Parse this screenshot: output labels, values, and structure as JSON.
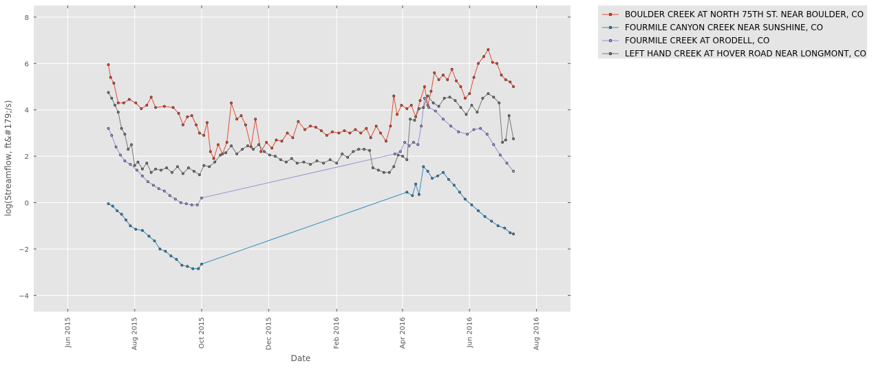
{
  "chart_data": {
    "type": "line",
    "xlabel": "Date",
    "ylabel": "log(Streamflow, ft&#179;/s)",
    "xlim": [
      "2015-05-01",
      "2016-09-01"
    ],
    "ylim": [
      -4.7,
      8.5
    ],
    "x_ticks": [
      "2015-06-01",
      "2015-08-01",
      "2015-10-01",
      "2015-12-01",
      "2016-02-01",
      "2016-04-01",
      "2016-06-01",
      "2016-08-01"
    ],
    "x_tick_labels": [
      "Jun 2015",
      "Aug 2015",
      "Oct 2015",
      "Dec 2015",
      "Feb 2016",
      "Apr 2016",
      "Jun 2016",
      "Aug 2016"
    ],
    "y_ticks": [
      -4,
      -2,
      0,
      2,
      4,
      6,
      8
    ],
    "y_tick_labels": [
      "−4",
      "−2",
      "0",
      "2",
      "4",
      "6",
      "8"
    ],
    "grid": true,
    "background": "#e5e5e5",
    "legend_position": "outside-upper-right",
    "series": [
      {
        "name": "BOULDER CREEK AT NORTH 75TH ST. NEAR BOULDER, CO",
        "color": "#e24a33",
        "points": [
          [
            "2015-07-08",
            5.95
          ],
          [
            "2015-07-10",
            5.4
          ],
          [
            "2015-07-13",
            5.15
          ],
          [
            "2015-07-17",
            4.3
          ],
          [
            "2015-07-22",
            4.3
          ],
          [
            "2015-07-27",
            4.45
          ],
          [
            "2015-08-02",
            4.3
          ],
          [
            "2015-08-07",
            4.05
          ],
          [
            "2015-08-12",
            4.2
          ],
          [
            "2015-08-16",
            4.55
          ],
          [
            "2015-08-20",
            4.1
          ],
          [
            "2015-08-28",
            4.15
          ],
          [
            "2015-09-05",
            4.1
          ],
          [
            "2015-09-10",
            3.85
          ],
          [
            "2015-09-14",
            3.35
          ],
          [
            "2015-09-18",
            3.7
          ],
          [
            "2015-09-22",
            3.75
          ],
          [
            "2015-09-26",
            3.35
          ],
          [
            "2015-09-29",
            3.0
          ],
          [
            "2015-10-03",
            2.9
          ],
          [
            "2015-10-06",
            3.45
          ],
          [
            "2015-10-09",
            2.2
          ],
          [
            "2015-10-12",
            1.9
          ],
          [
            "2015-10-16",
            2.5
          ],
          [
            "2015-10-20",
            2.1
          ],
          [
            "2015-10-24",
            2.6
          ],
          [
            "2015-10-28",
            4.3
          ],
          [
            "2015-11-02",
            3.6
          ],
          [
            "2015-11-06",
            3.75
          ],
          [
            "2015-11-10",
            3.35
          ],
          [
            "2015-11-15",
            2.4
          ],
          [
            "2015-11-19",
            3.6
          ],
          [
            "2015-11-24",
            2.2
          ],
          [
            "2015-11-29",
            2.6
          ],
          [
            "2015-12-04",
            2.35
          ],
          [
            "2015-12-08",
            2.7
          ],
          [
            "2015-12-13",
            2.65
          ],
          [
            "2015-12-18",
            3.0
          ],
          [
            "2015-12-23",
            2.8
          ],
          [
            "2015-12-28",
            3.5
          ],
          [
            "2016-01-03",
            3.15
          ],
          [
            "2016-01-08",
            3.3
          ],
          [
            "2016-01-13",
            3.25
          ],
          [
            "2016-01-18",
            3.1
          ],
          [
            "2016-01-23",
            2.9
          ],
          [
            "2016-01-28",
            3.05
          ],
          [
            "2016-02-03",
            3.0
          ],
          [
            "2016-02-08",
            3.1
          ],
          [
            "2016-02-13",
            3.0
          ],
          [
            "2016-02-18",
            3.15
          ],
          [
            "2016-02-23",
            3.0
          ],
          [
            "2016-02-28",
            3.2
          ],
          [
            "2016-03-03",
            2.8
          ],
          [
            "2016-03-08",
            3.3
          ],
          [
            "2016-03-12",
            3.0
          ],
          [
            "2016-03-17",
            2.65
          ],
          [
            "2016-03-21",
            3.3
          ],
          [
            "2016-03-24",
            4.6
          ],
          [
            "2016-03-27",
            3.8
          ],
          [
            "2016-03-31",
            4.2
          ],
          [
            "2016-04-05",
            4.05
          ],
          [
            "2016-04-09",
            4.2
          ],
          [
            "2016-04-13",
            3.7
          ],
          [
            "2016-04-17",
            4.4
          ],
          [
            "2016-04-21",
            5.0
          ],
          [
            "2016-04-24",
            4.2
          ],
          [
            "2016-04-27",
            4.8
          ],
          [
            "2016-04-30",
            5.6
          ],
          [
            "2016-05-04",
            5.3
          ],
          [
            "2016-05-08",
            5.5
          ],
          [
            "2016-05-12",
            5.3
          ],
          [
            "2016-05-16",
            5.75
          ],
          [
            "2016-05-20",
            5.25
          ],
          [
            "2016-05-24",
            5.0
          ],
          [
            "2016-05-28",
            4.5
          ],
          [
            "2016-06-01",
            4.7
          ],
          [
            "2016-06-05",
            5.4
          ],
          [
            "2016-06-09",
            6.0
          ],
          [
            "2016-06-14",
            6.3
          ],
          [
            "2016-06-18",
            6.6
          ],
          [
            "2016-06-22",
            6.05
          ],
          [
            "2016-06-26",
            6.0
          ],
          [
            "2016-06-30",
            5.5
          ],
          [
            "2016-07-04",
            5.3
          ],
          [
            "2016-07-08",
            5.2
          ],
          [
            "2016-07-11",
            5.0
          ]
        ]
      },
      {
        "name": "FOURMILE CANYON CREEK NEAR SUNSHINE, CO",
        "color": "#348abd",
        "points": [
          [
            "2015-07-08",
            -0.05
          ],
          [
            "2015-07-12",
            -0.15
          ],
          [
            "2015-07-16",
            -0.35
          ],
          [
            "2015-07-20",
            -0.5
          ],
          [
            "2015-07-24",
            -0.75
          ],
          [
            "2015-07-28",
            -1.0
          ],
          [
            "2015-08-02",
            -1.15
          ],
          [
            "2015-08-08",
            -1.2
          ],
          [
            "2015-08-14",
            -1.45
          ],
          [
            "2015-08-19",
            -1.65
          ],
          [
            "2015-08-24",
            -2.0
          ],
          [
            "2015-08-29",
            -2.1
          ],
          [
            "2015-09-03",
            -2.3
          ],
          [
            "2015-09-08",
            -2.45
          ],
          [
            "2015-09-13",
            -2.7
          ],
          [
            "2015-09-18",
            -2.75
          ],
          [
            "2015-09-23",
            -2.85
          ],
          [
            "2015-09-28",
            -2.85
          ],
          [
            "2015-10-01",
            -2.65
          ],
          [
            "2016-04-05",
            0.45
          ],
          [
            "2016-04-10",
            0.3
          ],
          [
            "2016-04-13",
            0.8
          ],
          [
            "2016-04-16",
            0.35
          ],
          [
            "2016-04-20",
            1.55
          ],
          [
            "2016-04-24",
            1.35
          ],
          [
            "2016-04-28",
            1.05
          ],
          [
            "2016-05-03",
            1.15
          ],
          [
            "2016-05-08",
            1.3
          ],
          [
            "2016-05-13",
            1.0
          ],
          [
            "2016-05-18",
            0.75
          ],
          [
            "2016-05-23",
            0.45
          ],
          [
            "2016-05-28",
            0.15
          ],
          [
            "2016-06-03",
            -0.1
          ],
          [
            "2016-06-09",
            -0.35
          ],
          [
            "2016-06-15",
            -0.6
          ],
          [
            "2016-06-21",
            -0.8
          ],
          [
            "2016-06-27",
            -1.0
          ],
          [
            "2016-07-03",
            -1.1
          ],
          [
            "2016-07-08",
            -1.3
          ],
          [
            "2016-07-11",
            -1.35
          ]
        ]
      },
      {
        "name": "FOURMILE CREEK AT ORODELL, CO",
        "color": "#988ed5",
        "points": [
          [
            "2015-07-08",
            3.2
          ],
          [
            "2015-07-11",
            2.9
          ],
          [
            "2015-07-15",
            2.4
          ],
          [
            "2015-07-19",
            2.05
          ],
          [
            "2015-07-23",
            1.8
          ],
          [
            "2015-07-28",
            1.65
          ],
          [
            "2015-08-03",
            1.4
          ],
          [
            "2015-08-08",
            1.15
          ],
          [
            "2015-08-13",
            0.9
          ],
          [
            "2015-08-18",
            0.75
          ],
          [
            "2015-08-23",
            0.6
          ],
          [
            "2015-08-28",
            0.5
          ],
          [
            "2015-09-02",
            0.3
          ],
          [
            "2015-09-07",
            0.15
          ],
          [
            "2015-09-12",
            0.0
          ],
          [
            "2015-09-17",
            -0.05
          ],
          [
            "2015-09-22",
            -0.1
          ],
          [
            "2015-09-27",
            -0.1
          ],
          [
            "2015-10-01",
            0.2
          ],
          [
            "2016-03-25",
            2.1
          ],
          [
            "2016-03-30",
            2.2
          ],
          [
            "2016-04-03",
            2.6
          ],
          [
            "2016-04-07",
            2.45
          ],
          [
            "2016-04-11",
            2.6
          ],
          [
            "2016-04-15",
            2.5
          ],
          [
            "2016-04-18",
            3.3
          ],
          [
            "2016-04-21",
            4.5
          ],
          [
            "2016-04-25",
            4.1
          ],
          [
            "2016-05-01",
            3.95
          ],
          [
            "2016-05-08",
            3.6
          ],
          [
            "2016-05-15",
            3.3
          ],
          [
            "2016-05-22",
            3.05
          ],
          [
            "2016-05-30",
            2.95
          ],
          [
            "2016-06-05",
            3.15
          ],
          [
            "2016-06-11",
            3.2
          ],
          [
            "2016-06-17",
            2.95
          ],
          [
            "2016-06-23",
            2.5
          ],
          [
            "2016-06-29",
            2.05
          ],
          [
            "2016-07-05",
            1.7
          ],
          [
            "2016-07-11",
            1.35
          ]
        ]
      },
      {
        "name": "LEFT HAND CREEK AT HOVER ROAD NEAR LONGMONT, CO",
        "color": "#777777",
        "points": [
          [
            "2015-07-08",
            4.75
          ],
          [
            "2015-07-11",
            4.5
          ],
          [
            "2015-07-14",
            4.2
          ],
          [
            "2015-07-17",
            3.9
          ],
          [
            "2015-07-20",
            3.2
          ],
          [
            "2015-07-23",
            2.95
          ],
          [
            "2015-07-26",
            2.3
          ],
          [
            "2015-07-29",
            2.5
          ],
          [
            "2015-08-01",
            1.6
          ],
          [
            "2015-08-04",
            1.75
          ],
          [
            "2015-08-08",
            1.45
          ],
          [
            "2015-08-12",
            1.7
          ],
          [
            "2015-08-16",
            1.3
          ],
          [
            "2015-08-20",
            1.45
          ],
          [
            "2015-08-25",
            1.4
          ],
          [
            "2015-08-30",
            1.5
          ],
          [
            "2015-09-04",
            1.3
          ],
          [
            "2015-09-09",
            1.55
          ],
          [
            "2015-09-14",
            1.25
          ],
          [
            "2015-09-19",
            1.5
          ],
          [
            "2015-09-24",
            1.35
          ],
          [
            "2015-09-29",
            1.2
          ],
          [
            "2015-10-03",
            1.6
          ],
          [
            "2015-10-08",
            1.55
          ],
          [
            "2015-10-13",
            1.75
          ],
          [
            "2015-10-18",
            2.05
          ],
          [
            "2015-10-23",
            2.15
          ],
          [
            "2015-10-28",
            2.45
          ],
          [
            "2015-11-02",
            2.1
          ],
          [
            "2015-11-07",
            2.3
          ],
          [
            "2015-11-12",
            2.45
          ],
          [
            "2015-11-17",
            2.3
          ],
          [
            "2015-11-22",
            2.5
          ],
          [
            "2015-11-27",
            2.2
          ],
          [
            "2015-12-02",
            2.05
          ],
          [
            "2015-12-07",
            2.0
          ],
          [
            "2015-12-12",
            1.85
          ],
          [
            "2015-12-17",
            1.75
          ],
          [
            "2015-12-22",
            1.9
          ],
          [
            "2015-12-27",
            1.7
          ],
          [
            "2016-01-02",
            1.75
          ],
          [
            "2016-01-08",
            1.65
          ],
          [
            "2016-01-14",
            1.8
          ],
          [
            "2016-01-20",
            1.7
          ],
          [
            "2016-01-26",
            1.85
          ],
          [
            "2016-02-01",
            1.7
          ],
          [
            "2016-02-06",
            2.1
          ],
          [
            "2016-02-11",
            1.95
          ],
          [
            "2016-02-16",
            2.2
          ],
          [
            "2016-02-21",
            2.3
          ],
          [
            "2016-02-26",
            2.3
          ],
          [
            "2016-03-02",
            2.25
          ],
          [
            "2016-03-05",
            1.5
          ],
          [
            "2016-03-10",
            1.4
          ],
          [
            "2016-03-15",
            1.3
          ],
          [
            "2016-03-20",
            1.3
          ],
          [
            "2016-03-24",
            1.55
          ],
          [
            "2016-03-28",
            2.05
          ],
          [
            "2016-04-01",
            2.0
          ],
          [
            "2016-04-05",
            1.85
          ],
          [
            "2016-04-08",
            3.6
          ],
          [
            "2016-04-12",
            3.55
          ],
          [
            "2016-04-16",
            4.05
          ],
          [
            "2016-04-20",
            4.1
          ],
          [
            "2016-04-24",
            4.6
          ],
          [
            "2016-04-29",
            4.3
          ],
          [
            "2016-05-04",
            4.15
          ],
          [
            "2016-05-09",
            4.5
          ],
          [
            "2016-05-14",
            4.55
          ],
          [
            "2016-05-19",
            4.4
          ],
          [
            "2016-05-24",
            4.1
          ],
          [
            "2016-05-29",
            3.8
          ],
          [
            "2016-06-03",
            4.2
          ],
          [
            "2016-06-08",
            3.9
          ],
          [
            "2016-06-13",
            4.5
          ],
          [
            "2016-06-18",
            4.7
          ],
          [
            "2016-06-23",
            4.55
          ],
          [
            "2016-06-28",
            4.3
          ],
          [
            "2016-07-01",
            2.6
          ],
          [
            "2016-07-04",
            2.7
          ],
          [
            "2016-07-07",
            3.75
          ],
          [
            "2016-07-11",
            2.75
          ]
        ]
      }
    ]
  }
}
